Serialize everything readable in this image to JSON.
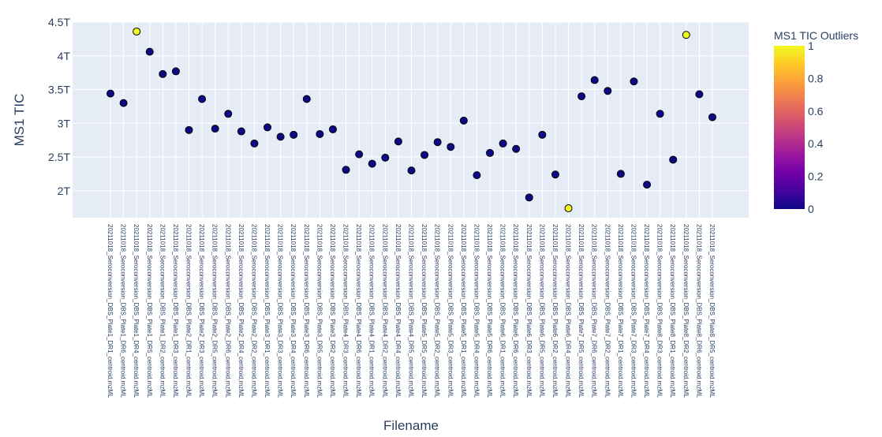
{
  "chart_data": {
    "type": "scatter",
    "title": "",
    "xlabel": "Filename",
    "ylabel": "MS1 TIC",
    "ylim": [
      1.6,
      4.5
    ],
    "y_unit_suffix": "T",
    "yticks": [
      {
        "value": 2.0,
        "label": "2T"
      },
      {
        "value": 2.5,
        "label": "2.5T"
      },
      {
        "value": 3.0,
        "label": "3T"
      },
      {
        "value": 3.5,
        "label": "3.5T"
      },
      {
        "value": 4.0,
        "label": "4T"
      },
      {
        "value": 4.5,
        "label": "4.5T"
      }
    ],
    "grid": true,
    "colorbar": {
      "title": "MS1 TIC Outliers",
      "min": 0,
      "max": 1,
      "ticks": [
        "0",
        "0.2",
        "0.4",
        "0.6",
        "0.8",
        "1"
      ],
      "colorscale": [
        "#0d0887",
        "#46039f",
        "#7201a8",
        "#9c179e",
        "#bd3786",
        "#d8576b",
        "#ed7953",
        "#fb9f3a",
        "#fdca26",
        "#f0f921"
      ]
    },
    "colors": {
      "plot_bg": "#e5ecf6",
      "grid": "#ffffff",
      "text": "#2a3f5f",
      "marker_outline": "#000000"
    },
    "points": [
      {
        "x": "20211018_Seroconversion_DBS_Plate1_DR1_centroid.mzML",
        "y": 3.44,
        "outlier": 0
      },
      {
        "x": "20211018_Seroconversion_DBS_Plate1_DR6_centroid.mzML",
        "y": 3.3,
        "outlier": 0
      },
      {
        "x": "20211018_Seroconversion_DBS_Plate1_DR4_centroid.mzML",
        "y": 4.36,
        "outlier": 1
      },
      {
        "x": "20211018_Seroconversion_DBS_Plate1_DR5_centroid.mzML",
        "y": 4.06,
        "outlier": 0
      },
      {
        "x": "20211018_Seroconversion_DBS_Plate1_DR2_centroid.mzML",
        "y": 3.73,
        "outlier": 0
      },
      {
        "x": "20211018_Seroconversion_DBS_Plate1_DR3_centroid.mzML",
        "y": 3.77,
        "outlier": 0
      },
      {
        "x": "20211018_Seroconversion_DBS_Plate2_DR1_centroid.mzML",
        "y": 2.9,
        "outlier": 0
      },
      {
        "x": "20211018_Seroconversion_DBS_Plate2_DR3_centroid.mzML",
        "y": 3.36,
        "outlier": 0
      },
      {
        "x": "20211018_Seroconversion_DBS_Plate2_DR5_centroid.mzML",
        "y": 2.92,
        "outlier": 0
      },
      {
        "x": "20211018_Seroconversion_DBS_Plate2_DR6_centroid.mzML",
        "y": 3.14,
        "outlier": 0
      },
      {
        "x": "20211018_Seroconversion_DBS_Plate2_DR4_centroid.mzML",
        "y": 2.88,
        "outlier": 0
      },
      {
        "x": "20211018_Seroconversion_DBS_Plate2_DR2_centroid.mzML",
        "y": 2.7,
        "outlier": 0
      },
      {
        "x": "20211018_Seroconversion_DBS_Plate3_DR1_centroid.mzML",
        "y": 2.94,
        "outlier": 0
      },
      {
        "x": "20211018_Seroconversion_DBS_Plate3_DR3_centroid.mzML",
        "y": 2.8,
        "outlier": 0
      },
      {
        "x": "20211018_Seroconversion_DBS_Plate3_DR4_centroid.mzML",
        "y": 2.83,
        "outlier": 0
      },
      {
        "x": "20211018_Seroconversion_DBS_Plate3_DR6_centroid.mzML",
        "y": 3.36,
        "outlier": 0
      },
      {
        "x": "20211018_Seroconversion_DBS_Plate3_DR5_centroid.mzML",
        "y": 2.84,
        "outlier": 0
      },
      {
        "x": "20211018_Seroconversion_DBS_Plate3_DR2_centroid.mzML",
        "y": 2.91,
        "outlier": 0
      },
      {
        "x": "20211018_Seroconversion_DBS_Plate4_DR3_centroid.mzML",
        "y": 2.31,
        "outlier": 0
      },
      {
        "x": "20211018_Seroconversion_DBS_Plate4_DR6_centroid.mzML",
        "y": 2.54,
        "outlier": 0
      },
      {
        "x": "20211018_Seroconversion_DBS_Plate4_DR1_centroid.mzML",
        "y": 2.4,
        "outlier": 0
      },
      {
        "x": "20211018_Seroconversion_DBS_Plate4_DR2_centroid.mzML",
        "y": 2.49,
        "outlier": 0
      },
      {
        "x": "20211018_Seroconversion_DBS_Plate4_DR4_centroid.mzML",
        "y": 2.73,
        "outlier": 0
      },
      {
        "x": "20211018_Seroconversion_DBS_Plate4_DR5_centroid.mzML",
        "y": 2.3,
        "outlier": 0
      },
      {
        "x": "20211018_Seroconversion_DBS_Plate5_DR5_centroid.mzML",
        "y": 2.53,
        "outlier": 0
      },
      {
        "x": "20211018_Seroconversion_DBS_Plate5_DR2_centroid.mzML",
        "y": 2.72,
        "outlier": 0
      },
      {
        "x": "20211018_Seroconversion_DBS_Plate5_DR3_centroid.mzML",
        "y": 2.65,
        "outlier": 0
      },
      {
        "x": "20211018_Seroconversion_DBS_Plate5_DR1_centroid.mzML",
        "y": 3.04,
        "outlier": 0
      },
      {
        "x": "20211018_Seroconversion_DBS_Plate5_DR4_centroid.mzML",
        "y": 2.23,
        "outlier": 0
      },
      {
        "x": "20211018_Seroconversion_DBS_Plate5_DR6_centroid.mzML",
        "y": 2.56,
        "outlier": 0
      },
      {
        "x": "20211018_Seroconversion_DBS_Plate6_DR1_centroid.mzML",
        "y": 2.7,
        "outlier": 0
      },
      {
        "x": "20211018_Seroconversion_DBS_Plate6_DR6_centroid.mzML",
        "y": 2.62,
        "outlier": 0
      },
      {
        "x": "20211018_Seroconversion_DBS_Plate6_DR3_centroid.mzML",
        "y": 1.9,
        "outlier": 0
      },
      {
        "x": "20211018_Seroconversion_DBS_Plate6_DR5_centroid.mzML",
        "y": 2.83,
        "outlier": 0
      },
      {
        "x": "20211018_Seroconversion_DBS_Plate6_DR2_centroid.mzML",
        "y": 2.24,
        "outlier": 0
      },
      {
        "x": "20211018_Seroconversion_DBS_Plate6_DR4_centroid.mzML",
        "y": 1.74,
        "outlier": 1
      },
      {
        "x": "20211018_Seroconversion_DBS_Plate7_DR5_centroid.mzML",
        "y": 3.4,
        "outlier": 0
      },
      {
        "x": "20211018_Seroconversion_DBS_Plate7_DR6_centroid.mzML",
        "y": 3.64,
        "outlier": 0
      },
      {
        "x": "20211018_Seroconversion_DBS_Plate7_DR2_centroid.mzML",
        "y": 3.48,
        "outlier": 0
      },
      {
        "x": "20211018_Seroconversion_DBS_Plate7_DR1_centroid.mzML",
        "y": 2.25,
        "outlier": 0
      },
      {
        "x": "20211018_Seroconversion_DBS_Plate7_DR3_centroid.mzML",
        "y": 3.62,
        "outlier": 0
      },
      {
        "x": "20211018_Seroconversion_DBS_Plate7_DR4_centroid.mzML",
        "y": 2.09,
        "outlier": 0
      },
      {
        "x": "20211018_Seroconversion_DBS_Plate8_DR3_centroid.mzML",
        "y": 3.14,
        "outlier": 0
      },
      {
        "x": "20211018_Seroconversion_DBS_Plate8_DR1_centroid.mzML",
        "y": 2.46,
        "outlier": 0
      },
      {
        "x": "20211018_Seroconversion_DBS_Plate8_DR2_centroid.mzML",
        "y": 4.31,
        "outlier": 1
      },
      {
        "x": "20211018_Seroconversion_DBS_Plate8_DR6_centroid.mzML",
        "y": 3.43,
        "outlier": 0
      },
      {
        "x": "20211018_Seroconversion_DBS_Plate8_DR5_centroid.mzML",
        "y": 3.09,
        "outlier": 0
      }
    ]
  }
}
